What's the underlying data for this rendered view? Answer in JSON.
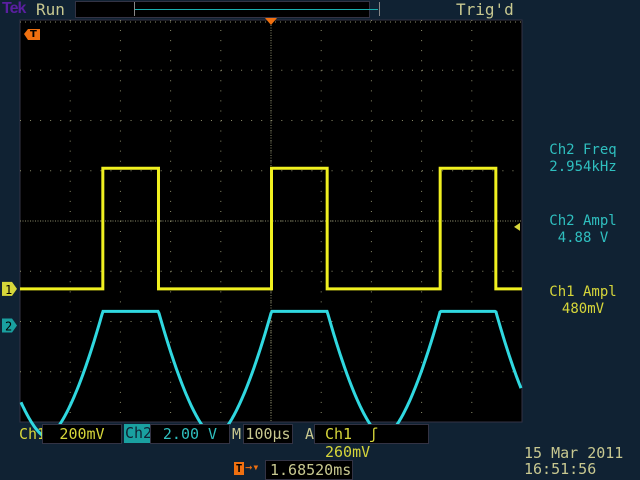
{
  "header": {
    "brand": "Tek",
    "acq_state": "Run",
    "trigger_state": "Trig'd"
  },
  "measurements": [
    {
      "label": "Ch2 Freq",
      "value": "2.954kHz",
      "color": "#2fbfbf"
    },
    {
      "label": "Ch2 Ampl",
      "value": "4.88 V",
      "color": "#2fbfbf"
    },
    {
      "label": "Ch1 Ampl",
      "value": "480mV",
      "color": "#d6d63a"
    }
  ],
  "footer": {
    "ch1_label": "Ch1",
    "ch1_scale": "200mV",
    "ch2_label": "Ch2",
    "ch2_scale": "2.00 V",
    "timebase_label": "M",
    "timebase": "100µs",
    "trigger_label": "A",
    "trigger_source": "Ch1",
    "trigger_slope_icon": "rising-edge",
    "trigger_level": "260mV",
    "trigger_position": "1.68520ms",
    "date": "15 Mar 2011",
    "time": "16:51:56"
  },
  "markers": {
    "ch1": "1",
    "ch2": "2",
    "trigger": "T"
  },
  "chart_data": {
    "type": "line",
    "grid": true,
    "divisions": {
      "x": 10,
      "y": 8
    },
    "colors": {
      "ch1": "#f0f020",
      "ch2": "#30d8e0"
    },
    "series": [
      {
        "name": "Ch1",
        "shape": "square",
        "low_div": 0,
        "high_div": 2.4,
        "period_div": 3.36,
        "first_rise_div": 1.65,
        "duty": 0.33
      },
      {
        "name": "Ch2",
        "shape": "rc-response",
        "offset_div": -0.75,
        "plateau_div": -0.45,
        "min_div": -2.95,
        "period_div": 3.36
      }
    ]
  }
}
